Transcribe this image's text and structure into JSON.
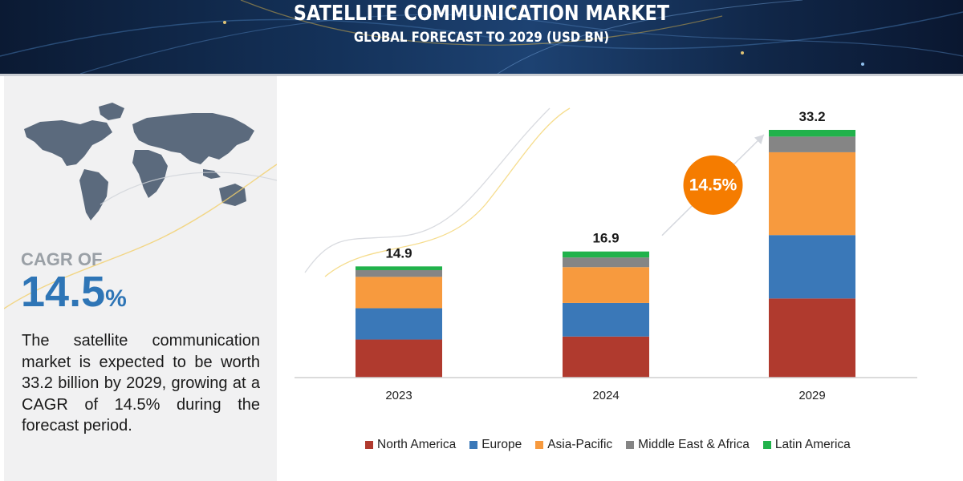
{
  "header": {
    "title": "SATELLITE COMMUNICATION MARKET",
    "subtitle": "GLOBAL FORECAST TO 2029 (USD BN)"
  },
  "sidebar": {
    "cagr_label": "CAGR OF",
    "cagr_number": "14.5",
    "cagr_unit": "%",
    "description": "The satellite communication market is expected to be worth 33.2 billion by 2029, growing at a CAGR of 14.5% during the forecast period.",
    "map_icon": "world-map-icon"
  },
  "colors": {
    "north_america": "#b03a2e",
    "europe": "#3a78b8",
    "asia_pacific": "#f79a3e",
    "middle_east_africa": "#858585",
    "latin_america": "#21b24b",
    "cagr_badge": "#f57c00"
  },
  "chart_data": {
    "type": "bar",
    "stacked": true,
    "title": "SATELLITE COMMUNICATION MARKET",
    "subtitle": "GLOBAL FORECAST TO 2029 (USD BN)",
    "categories": [
      "2023",
      "2024",
      "2029"
    ],
    "totals": [
      "14.9",
      "16.9",
      "33.2"
    ],
    "series": [
      {
        "name": "North America",
        "values": [
          5.1,
          5.5,
          10.6
        ]
      },
      {
        "name": "Europe",
        "values": [
          4.2,
          4.5,
          8.5
        ]
      },
      {
        "name": "Asia-Pacific",
        "values": [
          4.2,
          4.8,
          11.1
        ]
      },
      {
        "name": "Middle East & Africa",
        "values": [
          0.9,
          1.3,
          2.1
        ]
      },
      {
        "name": "Latin America",
        "values": [
          0.5,
          0.8,
          0.9
        ]
      }
    ],
    "annotation": "14.5%",
    "ylim": [
      0,
      33.2
    ],
    "grid": false,
    "legend_position": "bottom"
  }
}
